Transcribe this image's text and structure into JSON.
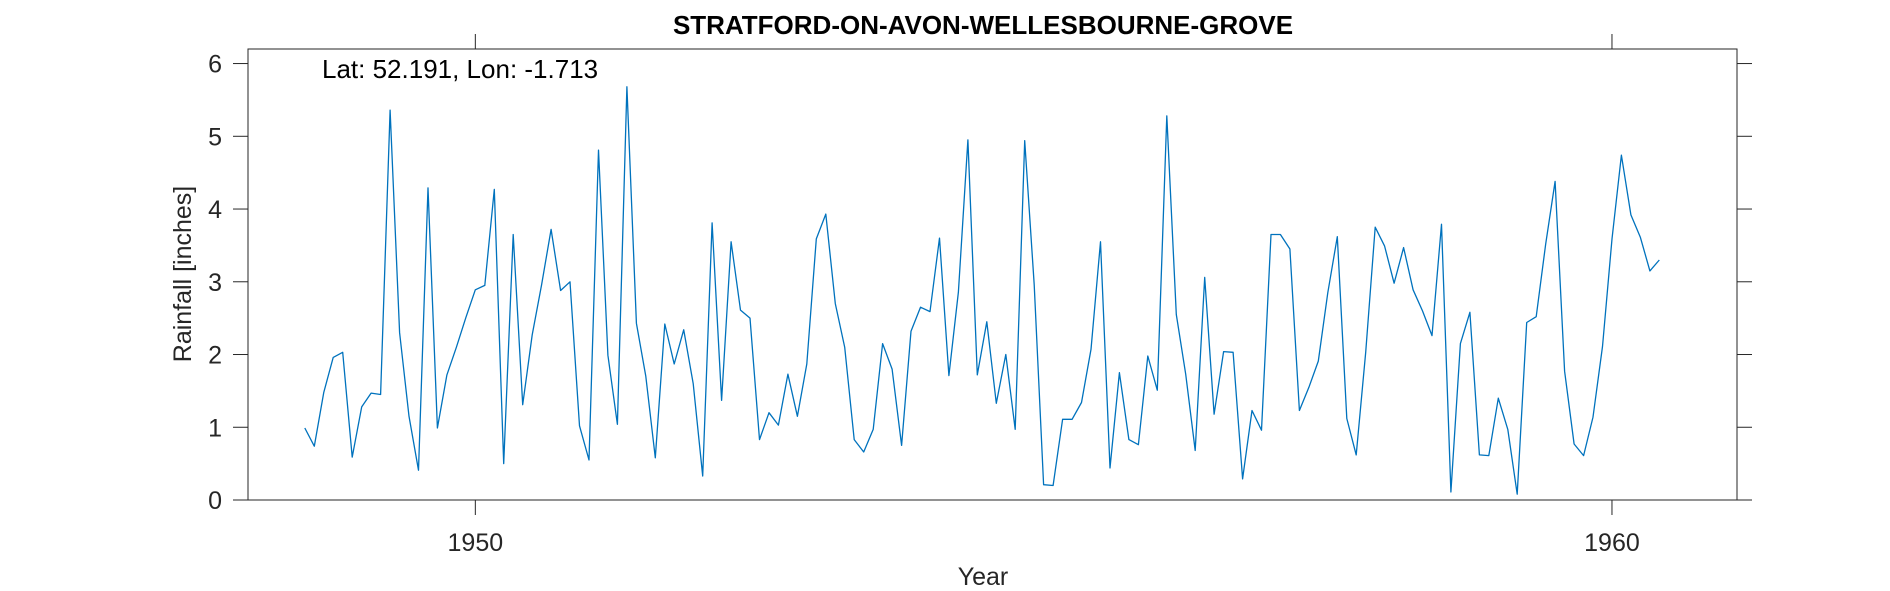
{
  "chart_data": {
    "type": "line",
    "title": "STRATFORD-ON-AVON-WELLESBOURNE-GROVE",
    "xlabel": "Year",
    "ylabel": "Rainfall [inches]",
    "annotation": "Lat: 52.191, Lon: -1.713",
    "xlim": [
      1948.0,
      1961.1
    ],
    "ylim": [
      0,
      6.2
    ],
    "xticks": [
      1950,
      1960
    ],
    "yticks": [
      0,
      1,
      2,
      3,
      4,
      5,
      6
    ],
    "grid": false,
    "line_color": "#0072BD",
    "series": [
      {
        "start": "1948-07",
        "step": "1 month",
        "values": [
          0.99,
          0.74,
          1.48,
          1.96,
          2.03,
          0.59,
          1.28,
          1.47,
          1.45,
          5.36,
          2.3,
          1.15,
          0.41,
          4.29,
          0.99,
          1.72,
          2.1,
          2.51,
          2.89,
          2.95,
          4.27,
          0.5,
          3.65,
          1.31,
          2.27,
          2.96,
          3.72,
          2.88,
          3.0,
          1.02,
          0.55,
          4.81,
          1.99,
          1.04,
          5.68,
          2.43,
          1.7,
          0.58,
          2.42,
          1.87,
          2.34,
          1.6,
          0.33,
          3.81,
          1.37,
          3.55,
          2.61,
          2.5,
          0.83,
          1.2,
          1.03,
          1.73,
          1.15,
          1.87,
          3.59,
          3.93,
          2.7,
          2.1,
          0.83,
          0.66,
          0.97,
          2.15,
          1.8,
          0.75,
          2.32,
          2.65,
          2.59,
          3.6,
          1.71,
          2.86,
          4.95,
          1.72,
          2.45,
          1.33,
          2.0,
          0.97,
          4.94,
          2.96,
          0.21,
          0.2,
          1.11,
          1.11,
          1.34,
          2.07,
          3.55,
          0.44,
          1.75,
          0.83,
          0.76,
          1.98,
          1.51,
          5.28,
          2.55,
          1.73,
          0.68,
          3.06,
          1.18,
          2.04,
          2.03,
          0.29,
          1.23,
          0.96,
          3.65,
          3.65,
          3.45,
          1.23,
          1.55,
          1.91,
          2.85,
          3.62,
          1.12,
          0.62,
          2.03,
          3.75,
          3.49,
          2.98,
          3.47,
          2.89,
          2.6,
          2.26,
          3.79,
          0.11,
          2.15,
          2.58,
          0.62,
          0.61,
          1.4,
          0.97,
          0.08,
          2.44,
          2.52,
          3.52,
          4.38,
          1.77,
          0.77,
          0.61,
          1.14,
          2.11,
          3.59,
          4.74,
          3.92,
          3.61,
          3.15,
          3.3
        ]
      }
    ]
  }
}
